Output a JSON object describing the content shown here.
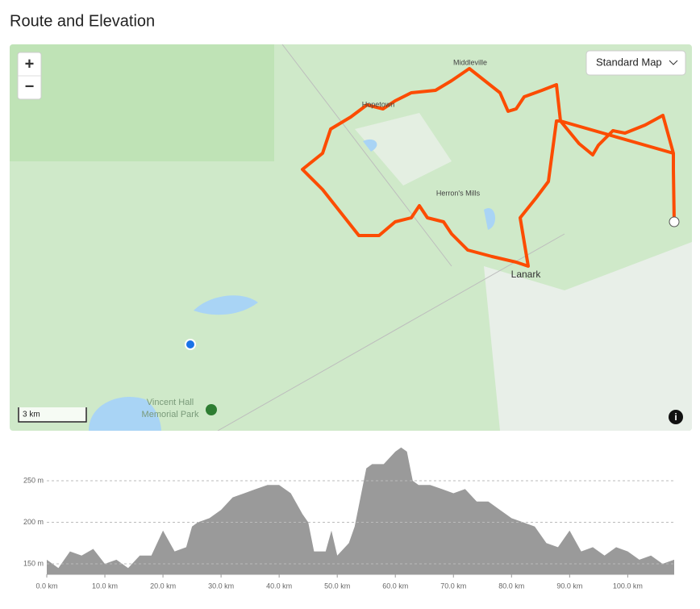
{
  "header": {
    "title": "Route and Elevation"
  },
  "map": {
    "controls": {
      "zoom_in": "+",
      "zoom_out": "−",
      "map_style": "Standard Map",
      "scale": "3 km",
      "info": "i"
    },
    "places": [
      "Middleville",
      "Hopetown",
      "Herron's Mills",
      "Lanark",
      "Vincent Hall",
      "Memorial Park"
    ]
  },
  "chart_data": {
    "type": "area",
    "color": "#9a9a9a",
    "grid": true,
    "x": [
      0,
      2,
      4,
      6,
      8,
      10,
      12,
      14,
      16,
      18,
      20,
      22,
      24,
      25,
      26,
      28,
      30,
      32,
      34,
      36,
      38,
      40,
      42,
      44,
      45,
      46,
      48,
      49,
      50,
      52,
      53,
      54,
      55,
      56,
      58,
      60,
      61,
      62,
      63,
      64,
      66,
      68,
      70,
      72,
      74,
      76,
      78,
      80,
      82,
      84,
      86,
      88,
      90,
      92,
      94,
      96,
      98,
      100,
      102,
      104,
      106,
      108
    ],
    "values": [
      155,
      145,
      165,
      160,
      168,
      150,
      155,
      145,
      160,
      160,
      190,
      165,
      170,
      195,
      200,
      205,
      215,
      230,
      235,
      240,
      245,
      245,
      235,
      210,
      200,
      165,
      165,
      190,
      160,
      175,
      195,
      230,
      265,
      270,
      270,
      285,
      290,
      285,
      250,
      245,
      245,
      240,
      235,
      240,
      225,
      225,
      215,
      205,
      200,
      195,
      175,
      170,
      190,
      165,
      170,
      160,
      170,
      165,
      155,
      160,
      150,
      155
    ],
    "xlim": [
      0,
      108
    ],
    "ylim": [
      137.4,
      296.6
    ],
    "xticks": [
      {
        "value": 0,
        "label": "0.0 km"
      },
      {
        "value": 10,
        "label": "10.0 km"
      },
      {
        "value": 20,
        "label": "20.0 km"
      },
      {
        "value": 30,
        "label": "30.0 km"
      },
      {
        "value": 40,
        "label": "40.0 km"
      },
      {
        "value": 50,
        "label": "50.0 km"
      },
      {
        "value": 60,
        "label": "60.0 km"
      },
      {
        "value": 70,
        "label": "70.0 km"
      },
      {
        "value": 80,
        "label": "80.0 km"
      },
      {
        "value": 90,
        "label": "90.0 km"
      },
      {
        "value": 100,
        "label": "100.0 km"
      }
    ],
    "yticks": [
      {
        "value": 150,
        "label": "150 m"
      },
      {
        "value": 200,
        "label": "200 m"
      },
      {
        "value": 250,
        "label": "250 m"
      }
    ]
  }
}
